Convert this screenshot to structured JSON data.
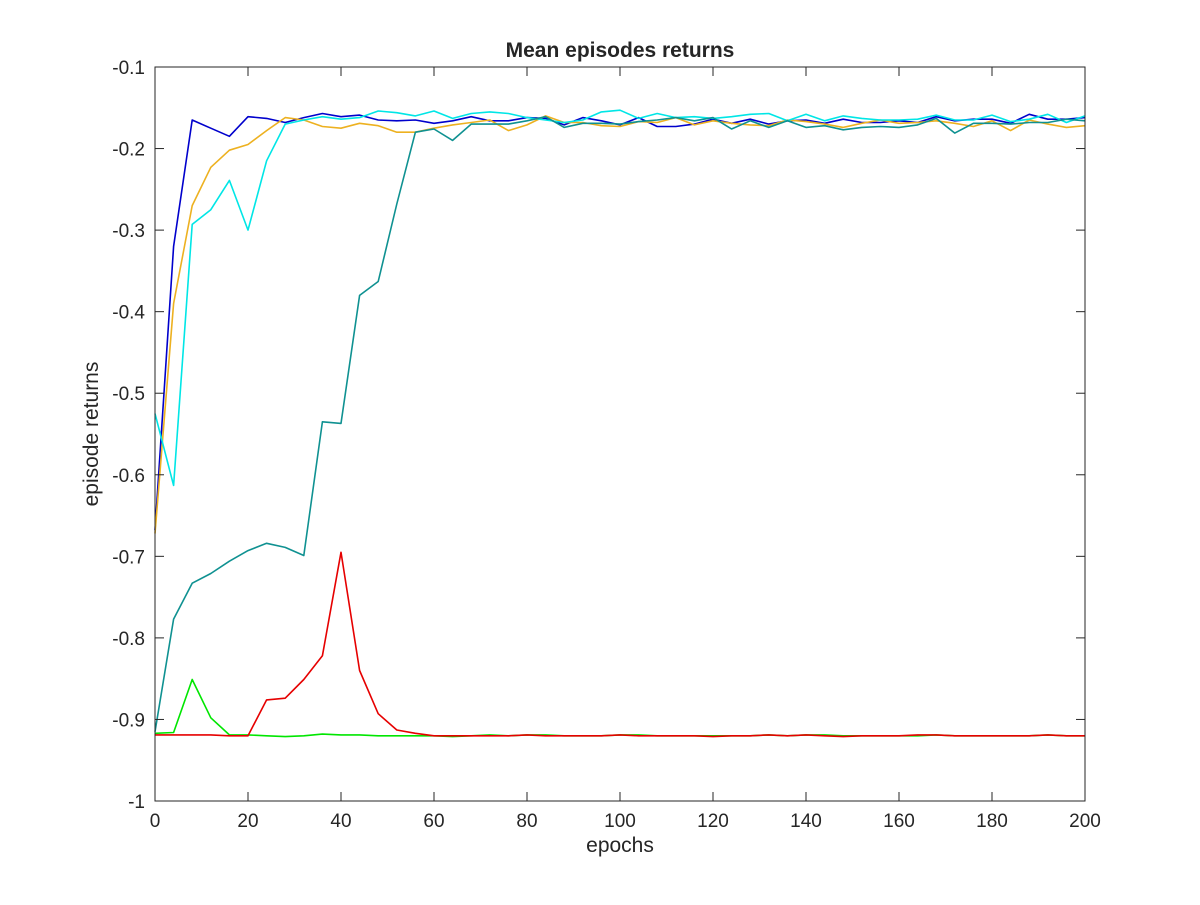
{
  "chart_data": {
    "type": "line",
    "title": "Mean episodes returns",
    "xlabel": "epochs",
    "ylabel": "episode returns",
    "xlim": [
      0,
      200
    ],
    "ylim": [
      -1,
      -0.1
    ],
    "xticks": [
      0,
      20,
      40,
      60,
      80,
      100,
      120,
      140,
      160,
      180,
      200
    ],
    "xtick_labels": [
      "0",
      "20",
      "40",
      "60",
      "80",
      "100",
      "120",
      "140",
      "160",
      "180",
      "200"
    ],
    "yticks": [
      -1,
      -0.9,
      -0.8,
      -0.7,
      -0.6,
      -0.5,
      -0.4,
      -0.3,
      -0.2,
      -0.1
    ],
    "ytick_labels": [
      "-1",
      "-0.9",
      "-0.8",
      "-0.7",
      "-0.6",
      "-0.5",
      "-0.4",
      "-0.3",
      "-0.2",
      "-0.1"
    ],
    "grid": false,
    "box": true,
    "x": [
      0,
      4,
      8,
      12,
      16,
      20,
      24,
      28,
      32,
      36,
      40,
      44,
      48,
      52,
      56,
      60,
      64,
      68,
      72,
      76,
      80,
      84,
      88,
      92,
      96,
      100,
      104,
      108,
      112,
      116,
      120,
      124,
      128,
      132,
      136,
      140,
      144,
      148,
      152,
      156,
      160,
      164,
      168,
      172,
      176,
      180,
      184,
      188,
      192,
      196,
      200
    ],
    "series": [
      {
        "color": "#0000cc",
        "values": [
          -0.668,
          -0.32,
          -0.165,
          -0.175,
          -0.185,
          -0.161,
          -0.163,
          -0.168,
          -0.162,
          -0.157,
          -0.161,
          -0.159,
          -0.165,
          -0.166,
          -0.165,
          -0.169,
          -0.166,
          -0.161,
          -0.166,
          -0.166,
          -0.162,
          -0.163,
          -0.171,
          -0.162,
          -0.166,
          -0.171,
          -0.162,
          -0.173,
          -0.173,
          -0.17,
          -0.164,
          -0.169,
          -0.164,
          -0.17,
          -0.166,
          -0.165,
          -0.169,
          -0.164,
          -0.168,
          -0.168,
          -0.166,
          -0.168,
          -0.161,
          -0.166,
          -0.164,
          -0.164,
          -0.169,
          -0.158,
          -0.164,
          -0.164,
          -0.162
        ]
      },
      {
        "color": "#edb120",
        "values": [
          -0.672,
          -0.39,
          -0.27,
          -0.223,
          -0.202,
          -0.195,
          -0.178,
          -0.162,
          -0.165,
          -0.173,
          -0.175,
          -0.169,
          -0.172,
          -0.18,
          -0.18,
          -0.175,
          -0.171,
          -0.168,
          -0.165,
          -0.178,
          -0.171,
          -0.16,
          -0.168,
          -0.168,
          -0.172,
          -0.173,
          -0.167,
          -0.168,
          -0.162,
          -0.171,
          -0.166,
          -0.169,
          -0.171,
          -0.172,
          -0.165,
          -0.167,
          -0.17,
          -0.174,
          -0.169,
          -0.165,
          -0.169,
          -0.168,
          -0.166,
          -0.169,
          -0.173,
          -0.166,
          -0.178,
          -0.165,
          -0.17,
          -0.174,
          -0.172
        ]
      },
      {
        "color": "#00e6e6",
        "values": [
          -0.525,
          -0.613,
          -0.293,
          -0.275,
          -0.239,
          -0.3,
          -0.215,
          -0.17,
          -0.165,
          -0.161,
          -0.164,
          -0.162,
          -0.154,
          -0.156,
          -0.16,
          -0.154,
          -0.163,
          -0.157,
          -0.155,
          -0.157,
          -0.162,
          -0.165,
          -0.168,
          -0.165,
          -0.155,
          -0.153,
          -0.163,
          -0.157,
          -0.162,
          -0.161,
          -0.163,
          -0.161,
          -0.158,
          -0.157,
          -0.166,
          -0.158,
          -0.166,
          -0.16,
          -0.163,
          -0.165,
          -0.165,
          -0.164,
          -0.159,
          -0.165,
          -0.165,
          -0.159,
          -0.167,
          -0.164,
          -0.158,
          -0.168,
          -0.16
        ]
      },
      {
        "color": "#0f9191",
        "values": [
          -0.915,
          -0.777,
          -0.733,
          -0.721,
          -0.706,
          -0.693,
          -0.684,
          -0.689,
          -0.699,
          -0.535,
          -0.537,
          -0.38,
          -0.363,
          -0.268,
          -0.18,
          -0.176,
          -0.19,
          -0.17,
          -0.17,
          -0.17,
          -0.166,
          -0.161,
          -0.174,
          -0.169,
          -0.169,
          -0.17,
          -0.167,
          -0.165,
          -0.162,
          -0.166,
          -0.162,
          -0.176,
          -0.166,
          -0.174,
          -0.166,
          -0.174,
          -0.172,
          -0.177,
          -0.174,
          -0.173,
          -0.174,
          -0.171,
          -0.163,
          -0.181,
          -0.169,
          -0.169,
          -0.17,
          -0.168,
          -0.168,
          -0.164,
          -0.166
        ]
      },
      {
        "color": "#00e600",
        "values": [
          -0.917,
          -0.916,
          -0.851,
          -0.898,
          -0.919,
          -0.919,
          -0.92,
          -0.921,
          -0.92,
          -0.918,
          -0.919,
          -0.919,
          -0.92,
          -0.92,
          -0.92,
          -0.92,
          -0.921,
          -0.92,
          -0.919,
          -0.92,
          -0.919,
          -0.919,
          -0.92,
          -0.92,
          -0.92,
          -0.919,
          -0.919,
          -0.92,
          -0.92,
          -0.92,
          -0.92,
          -0.92,
          -0.92,
          -0.919,
          -0.92,
          -0.919,
          -0.919,
          -0.92,
          -0.92,
          -0.92,
          -0.92,
          -0.92,
          -0.919,
          -0.92,
          -0.92,
          -0.92,
          -0.92,
          -0.92,
          -0.919,
          -0.92,
          -0.92
        ]
      },
      {
        "color": "#e60000",
        "values": [
          -0.919,
          -0.919,
          -0.919,
          -0.919,
          -0.92,
          -0.92,
          -0.876,
          -0.874,
          -0.851,
          -0.822,
          -0.695,
          -0.84,
          -0.893,
          -0.913,
          -0.917,
          -0.92,
          -0.92,
          -0.92,
          -0.92,
          -0.92,
          -0.919,
          -0.92,
          -0.92,
          -0.92,
          -0.92,
          -0.919,
          -0.92,
          -0.92,
          -0.92,
          -0.92,
          -0.921,
          -0.92,
          -0.92,
          -0.919,
          -0.92,
          -0.919,
          -0.92,
          -0.921,
          -0.92,
          -0.92,
          -0.92,
          -0.919,
          -0.919,
          -0.92,
          -0.92,
          -0.92,
          -0.92,
          -0.92,
          -0.919,
          -0.92,
          -0.92
        ]
      }
    ]
  }
}
